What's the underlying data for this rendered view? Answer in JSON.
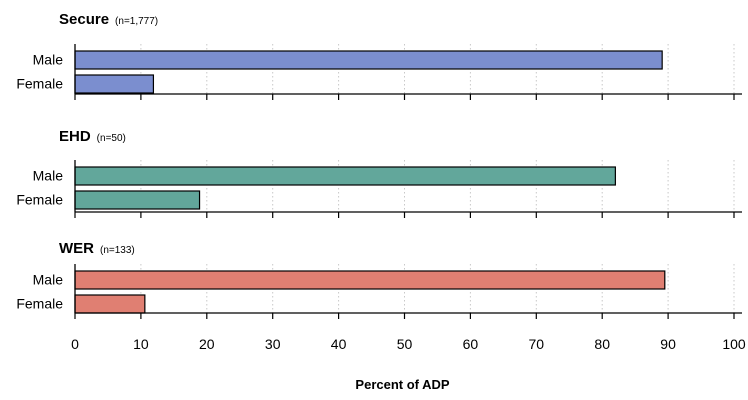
{
  "chart_data": {
    "type": "bar",
    "orientation": "horizontal",
    "xlabel": "Percent of ADP",
    "xlim": [
      0,
      100
    ],
    "xticks": [
      0,
      10,
      20,
      30,
      40,
      50,
      60,
      70,
      80,
      90,
      100
    ],
    "grid": "vertical dotted",
    "categories": [
      "Male",
      "Female"
    ],
    "panels": [
      {
        "title": "Secure",
        "n_label": "(n=1,777)",
        "color": "#7b8ecf",
        "values": [
          89.1,
          11.9
        ]
      },
      {
        "title": "EHD",
        "n_label": "(n=50)",
        "color": "#62a79b",
        "values": [
          82.0,
          18.9
        ]
      },
      {
        "title": "WER",
        "n_label": "(n=133)",
        "color": "#e07f72",
        "values": [
          89.5,
          10.6
        ]
      }
    ]
  }
}
